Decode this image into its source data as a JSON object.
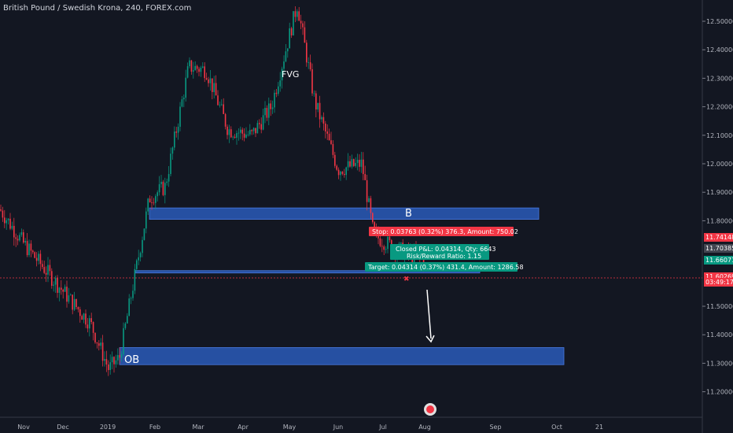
{
  "header": {
    "symbol_title": "British Pound / Swedish Krona, 240, FOREX.com"
  },
  "price_scale": {
    "ticks": [
      "12.50000",
      "12.40000",
      "12.30000",
      "12.20000",
      "12.10000",
      "12.00000",
      "11.90000",
      "11.80000",
      "11.50000",
      "11.40000",
      "11.30000",
      "11.20000"
    ],
    "markers": [
      {
        "label": "11.74148",
        "color": "#f23645",
        "value": 11.74148
      },
      {
        "label": "11.70385",
        "color": "#434651",
        "value": 11.70385
      },
      {
        "label": "11.66071",
        "color": "#089981",
        "value": 11.66071
      },
      {
        "label": "11.60269",
        "color": "#f23645",
        "value": 11.60269
      },
      {
        "label": "03:49:17",
        "color": "#f23645",
        "value": 11.584
      }
    ]
  },
  "time_scale": {
    "ticks": [
      "Nov",
      "Dec",
      "2019",
      "Feb",
      "Mar",
      "Apr",
      "May",
      "Jun",
      "Jul",
      "Aug",
      "Sep",
      "Oct",
      "21"
    ]
  },
  "annotations": {
    "fvg": "FVG",
    "b_zone": "B",
    "ob_zone": "OB",
    "stop_label": "Stop: 0.03763 (0.32%) 376.3, Amount: 750.02",
    "closed_pl": "Closed P&L: 0.04314, Qty: 6643",
    "rr_ratio": "Risk/Reward Ratio: 1.15",
    "target_label": "Target: 0.04314 (0.37%) 431.4, Amount: 1286.58"
  },
  "colors": {
    "background": "#131722",
    "up": "#089981",
    "down": "#f23645",
    "zone": "#2a5ab8",
    "text": "#d1d4dc"
  },
  "chart_data": {
    "type": "candlestick",
    "title": "British Pound / Swedish Krona, 240, FOREX.com",
    "x": [
      "Nov",
      "Dec",
      "2019",
      "Feb",
      "Mar",
      "Apr",
      "May",
      "Jun",
      "Jul",
      "Aug"
    ],
    "ylim": [
      11.15,
      12.56
    ],
    "trend_closes": [
      11.84,
      11.72,
      11.62,
      11.52,
      11.44,
      11.28,
      11.32,
      11.88,
      11.92,
      12.34,
      12.33,
      12.12,
      12.1,
      12.2,
      12.56,
      12.22,
      11.98,
      12.0,
      11.75,
      11.7,
      11.66
    ],
    "zones": [
      {
        "label": "B",
        "from": 11.805,
        "to": 11.845
      },
      {
        "label": "OB",
        "from": 11.295,
        "to": 11.355
      },
      {
        "label": "",
        "from": 11.617,
        "to": 11.625
      }
    ],
    "position": {
      "entry": 11.70385,
      "stop": 11.74148,
      "target": 11.66071,
      "current": 11.60269
    }
  }
}
